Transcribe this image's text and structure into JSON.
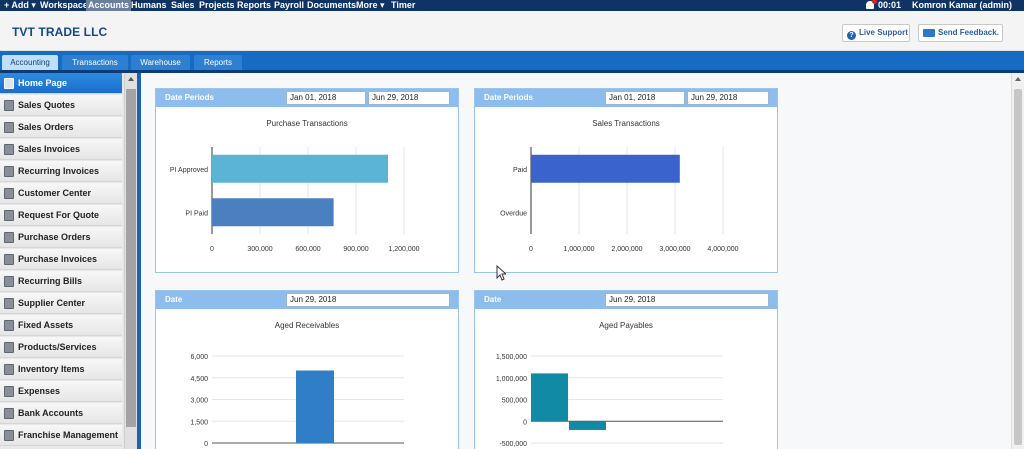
{
  "topmenu": {
    "items": [
      "+ Add ▾",
      "Workspace",
      "Accounts",
      "Humans",
      "Sales",
      "Projects",
      "Reports",
      "Payroll",
      "Documents",
      "More ▾",
      "Timer"
    ],
    "active_index": 2,
    "time": "00:01",
    "user": "Komron Kamar (admin)"
  },
  "header": {
    "company": "TVT TRADE LLC",
    "live_support": "Live Support",
    "send_feedback": "Send Feedback."
  },
  "tabs": [
    "Accounting",
    "Transactions",
    "Warehouse",
    "Reports"
  ],
  "active_tab": 0,
  "sidebar": {
    "items": [
      "Home Page",
      "Sales Quotes",
      "Sales Orders",
      "Sales Invoices",
      "Recurring Invoices",
      "Customer Center",
      "Request For Quote",
      "Purchase Orders",
      "Purchase Invoices",
      "Recurring Bills",
      "Supplier Center",
      "Fixed Assets",
      "Products/Services",
      "Inventory Items",
      "Expenses",
      "Bank Accounts",
      "Franchise Management"
    ],
    "active_index": 0
  },
  "panels": {
    "purchase": {
      "head_label": "Date Periods",
      "date_from": "Jan 01, 2018",
      "date_to": "Jun 29, 2018",
      "title": "Purchase Transactions"
    },
    "sales": {
      "head_label": "Date Periods",
      "date_from": "Jan 01, 2018",
      "date_to": "Jun 29, 2018",
      "title": "Sales Transactions"
    },
    "receivables": {
      "head_label": "Date",
      "date": "Jun 29, 2018",
      "title": "Aged Receivables"
    },
    "payables": {
      "head_label": "Date",
      "date": "Jun 29, 2018",
      "title": "Aged Payables"
    }
  },
  "colors": {
    "purchase_approved": "#5bb4d4",
    "purchase_paid": "#4a7fc0",
    "sales_paid": "#3a64cc",
    "receivables": "#2f7ec6",
    "payables": "#118aa6"
  },
  "chart_data": [
    {
      "id": "purchase",
      "type": "bar",
      "orientation": "horizontal",
      "categories": [
        "PI Approved",
        "PI Paid"
      ],
      "values": [
        1100000,
        760000
      ],
      "ticks": [
        "0",
        "300,000",
        "600,000",
        "900,000",
        "1,200,000"
      ],
      "xlim": [
        0,
        1200000
      ]
    },
    {
      "id": "sales",
      "type": "bar",
      "orientation": "horizontal",
      "categories": [
        "Paid",
        "Overdue"
      ],
      "values": [
        3100000,
        0
      ],
      "ticks": [
        "0",
        "1,000,000",
        "2,000,000",
        "3,000,000",
        "4,000,000"
      ],
      "xlim": [
        0,
        4000000
      ]
    },
    {
      "id": "receivables",
      "type": "bar",
      "orientation": "vertical",
      "values": [
        0,
        5000,
        0
      ],
      "ticks": [
        "6,000",
        "4,500",
        "3,000",
        "1,500",
        "0"
      ],
      "ylim": [
        0,
        6000
      ]
    },
    {
      "id": "payables",
      "type": "bar",
      "orientation": "vertical",
      "values": [
        1100000,
        -200000,
        0,
        0,
        0
      ],
      "ticks": [
        "1,500,000",
        "1,000,000",
        "500,000",
        "0",
        "-500,000"
      ],
      "ylim": [
        -500000,
        1500000
      ]
    }
  ]
}
